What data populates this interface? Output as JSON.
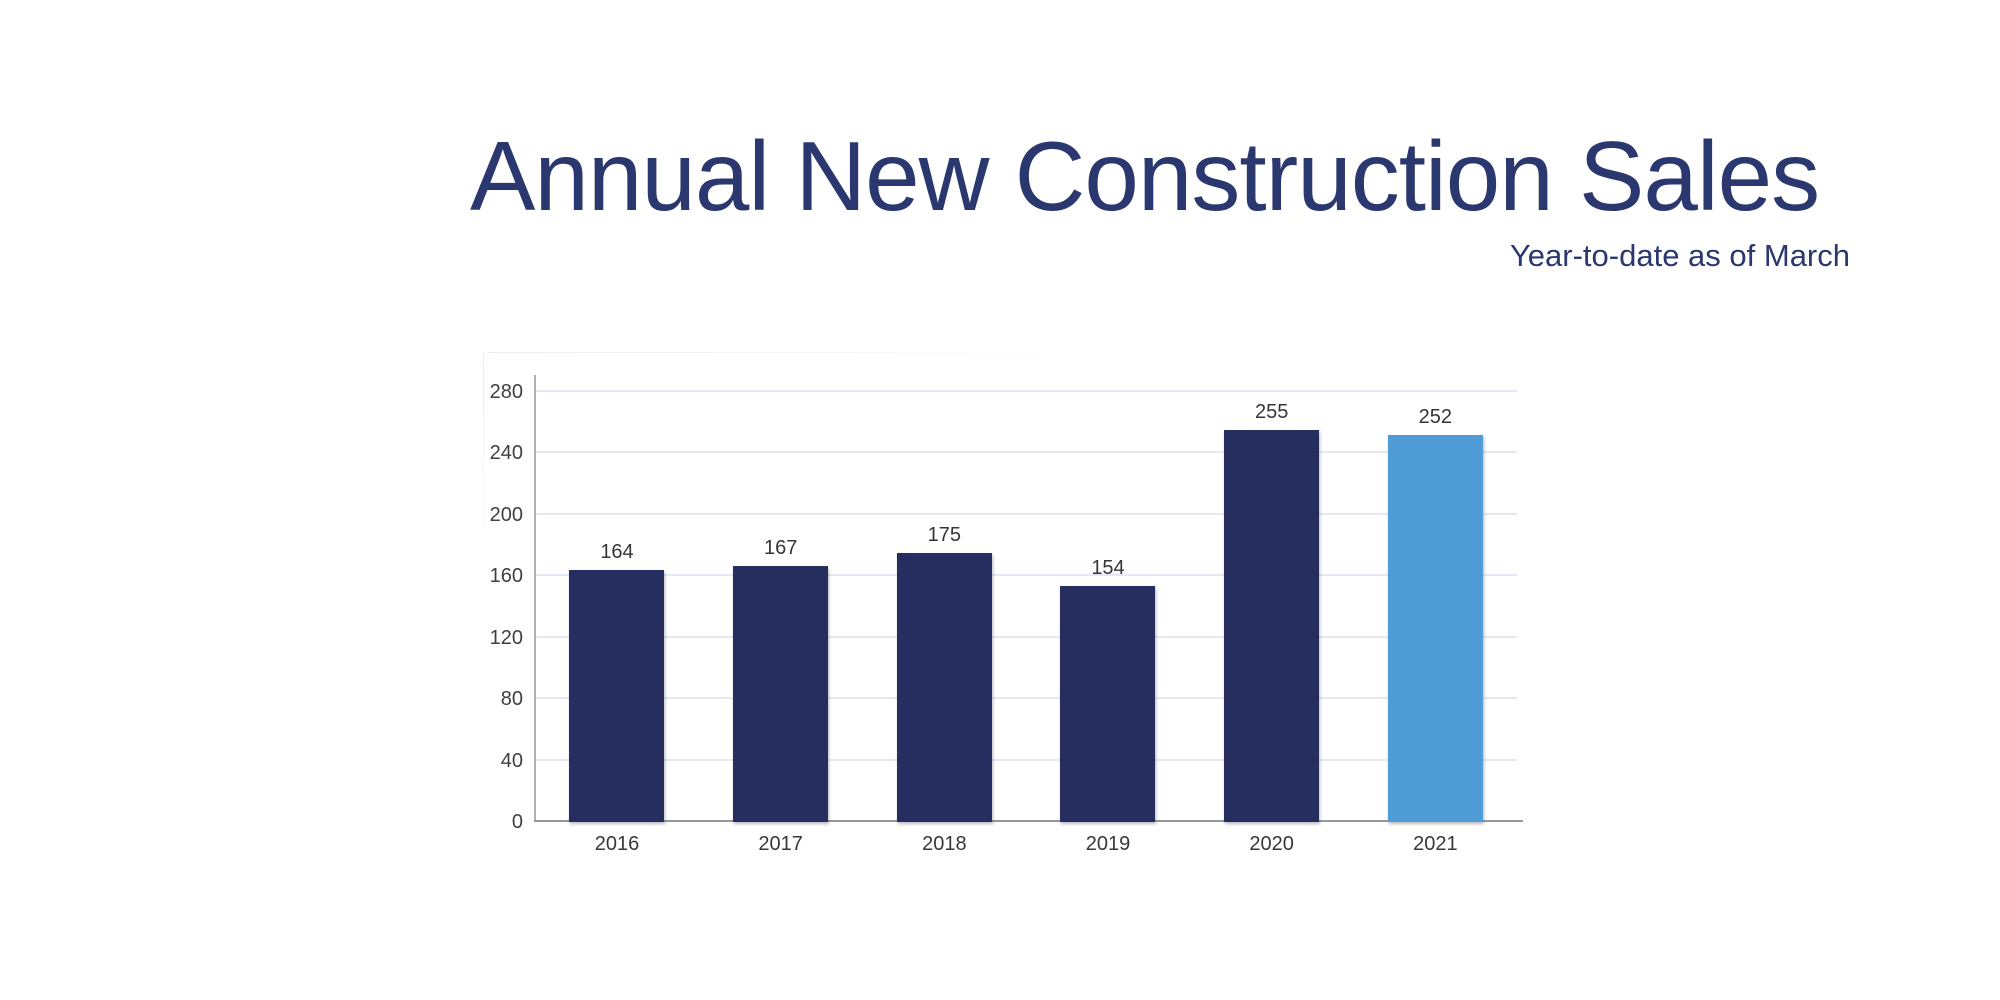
{
  "chart_data": {
    "type": "bar",
    "title": "Annual New Construction Sales",
    "subtitle": "Year-to-date as of March",
    "categories": [
      "2016",
      "2017",
      "2018",
      "2019",
      "2020",
      "2021"
    ],
    "values": [
      164,
      167,
      175,
      154,
      255,
      252
    ],
    "yticks": [
      0,
      40,
      80,
      120,
      160,
      200,
      240,
      280
    ],
    "ylim": [
      0,
      280
    ],
    "xlabel": "",
    "ylabel": "",
    "grid": true,
    "legend": false,
    "value_labels": true,
    "highlight_category": "2021",
    "bar_color_default": "#252e5f",
    "bar_color_highlight": "#4f9cd6"
  },
  "colors": {
    "background": "#ffffff",
    "title_text": "#2b3870",
    "subtitle_text": "#2b3870",
    "bar_navy": "#252e5f",
    "bar_light_blue": "#4f9cd6",
    "axis_tick_text": "#3f3f44",
    "value_label_text": "#353539",
    "x_label_text": "#38383c",
    "gridline": "#e5e9f1",
    "y_axis_line": "#aeb0b6",
    "x_baseline": "#97979d"
  }
}
